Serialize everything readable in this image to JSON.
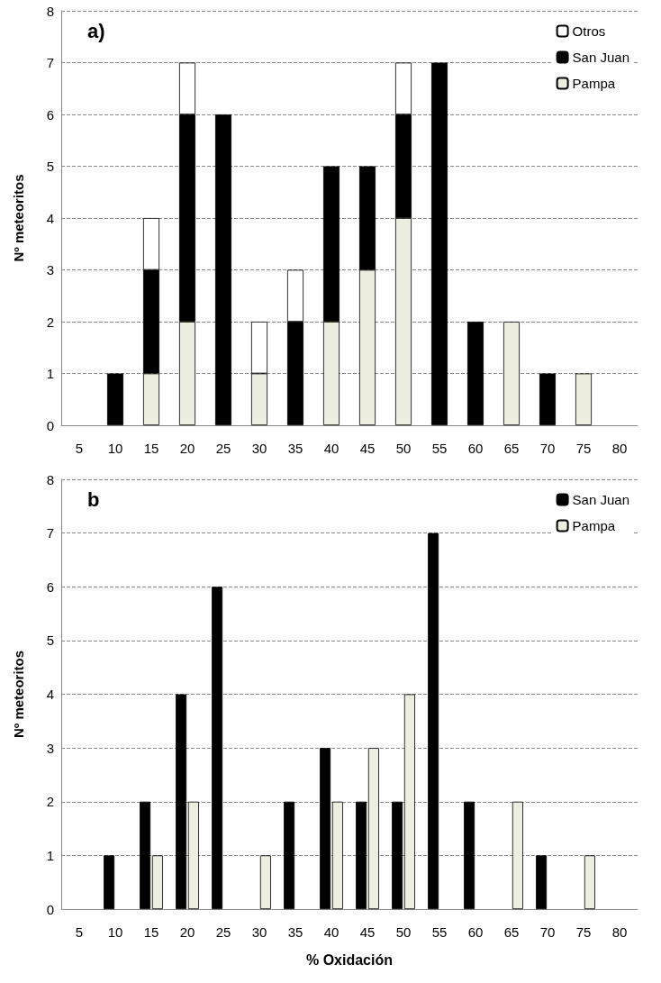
{
  "chart_data": [
    {
      "type": "bar",
      "title": "a)",
      "ylabel": "Nº meteoritos",
      "stacked": true,
      "categories": [
        "5",
        "10",
        "15",
        "20",
        "25",
        "30",
        "35",
        "40",
        "45",
        "50",
        "55",
        "60",
        "65",
        "70",
        "75",
        "80"
      ],
      "series": [
        {
          "name": "Pampa",
          "color": "#eeeee0",
          "values": [
            null,
            null,
            1,
            2,
            null,
            1,
            null,
            2,
            3,
            4,
            null,
            null,
            2,
            null,
            1,
            null
          ]
        },
        {
          "name": "San Juan",
          "color": "#000000",
          "values": [
            null,
            1,
            2,
            4,
            6,
            null,
            2,
            3,
            2,
            2,
            7,
            2,
            null,
            1,
            null,
            null
          ]
        },
        {
          "name": "Otros",
          "color": "#ffffff",
          "values": [
            null,
            null,
            1,
            1,
            null,
            1,
            1,
            null,
            null,
            1,
            null,
            null,
            null,
            null,
            null,
            null
          ]
        }
      ],
      "ylim": [
        0,
        8
      ],
      "yticks": [
        0,
        1,
        2,
        3,
        4,
        5,
        6,
        7,
        8
      ],
      "grid": "y",
      "legend": "top right"
    },
    {
      "type": "bar",
      "title": "b",
      "ylabel": "Nº meteoritos",
      "xlabel": "% Oxidación",
      "categories": [
        "5",
        "10",
        "15",
        "20",
        "25",
        "30",
        "35",
        "40",
        "45",
        "50",
        "55",
        "60",
        "65",
        "70",
        "75",
        "80"
      ],
      "series": [
        {
          "name": "San Juan",
          "color": "#000000",
          "values": [
            null,
            1,
            2,
            4,
            6,
            null,
            2,
            3,
            2,
            2,
            7,
            2,
            null,
            1,
            null,
            null
          ]
        },
        {
          "name": "Pampa",
          "color": "#eeeee0",
          "values": [
            null,
            null,
            1,
            2,
            null,
            1,
            null,
            2,
            3,
            4,
            null,
            null,
            2,
            null,
            1,
            null
          ]
        }
      ],
      "ylim": [
        0,
        8
      ],
      "yticks": [
        0,
        1,
        2,
        3,
        4,
        5,
        6,
        7,
        8
      ],
      "grid": "y",
      "legend": "top right"
    }
  ]
}
